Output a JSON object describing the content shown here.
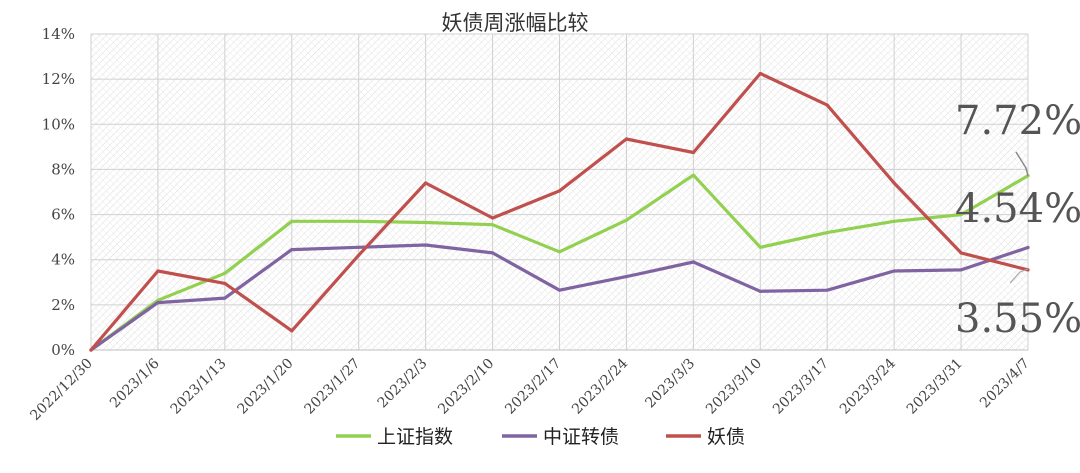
{
  "chart_data": {
    "type": "line",
    "title": "妖债周涨幅比较",
    "xlabel": "",
    "ylabel": "",
    "categories": [
      "2022/12/30",
      "2023/1/6",
      "2023/1/13",
      "2023/1/20",
      "2023/1/27",
      "2023/2/3",
      "2023/2/10",
      "2023/2/17",
      "2023/2/24",
      "2023/3/3",
      "2023/3/10",
      "2023/3/17",
      "2023/3/24",
      "2023/3/31",
      "2023/4/7"
    ],
    "ylim": [
      0,
      14
    ],
    "yticks": [
      0,
      2,
      4,
      6,
      8,
      10,
      12,
      14
    ],
    "ytick_labels": [
      "0%",
      "2%",
      "4%",
      "6%",
      "8%",
      "10%",
      "12%",
      "14%"
    ],
    "grid": true,
    "legend_position": "bottom",
    "series": [
      {
        "name": "上证指数",
        "color": "#92D050",
        "values": [
          0,
          2.2,
          3.4,
          5.7,
          5.7,
          5.65,
          5.55,
          4.35,
          5.75,
          7.75,
          4.55,
          5.2,
          5.7,
          6.0,
          7.72
        ]
      },
      {
        "name": "中证转债",
        "color": "#8064A2",
        "values": [
          0,
          2.1,
          2.3,
          4.45,
          4.55,
          4.65,
          4.3,
          2.65,
          3.25,
          3.9,
          2.6,
          2.65,
          3.5,
          3.55,
          4.54
        ]
      },
      {
        "name": "妖债",
        "color": "#C0504D",
        "values": [
          0,
          3.5,
          2.95,
          0.85,
          4.2,
          7.4,
          5.85,
          7.05,
          9.35,
          8.75,
          12.25,
          10.85,
          7.4,
          4.3,
          3.55
        ]
      }
    ],
    "annotations": [
      {
        "text": "7.72%",
        "series": "上证指数"
      },
      {
        "text": "4.54%",
        "series": "中证转债"
      },
      {
        "text": "3.55%",
        "series": "妖债"
      }
    ]
  }
}
